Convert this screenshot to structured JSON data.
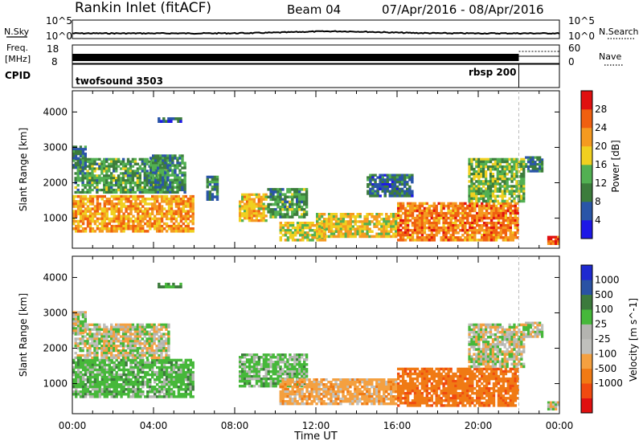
{
  "header": {
    "station": "Rankin Inlet (fitACF)",
    "beam": "Beam 04",
    "dates": "07/Apr/2016 - 08/Apr/2016"
  },
  "noise_panel": {
    "left_label": "N.Sky",
    "right_label": "N.Search",
    "left_ticks": [
      "10^5",
      "10^0"
    ],
    "right_ticks": [
      "10^5",
      "10^0"
    ]
  },
  "freq_panel": {
    "left_label_1": "Freq.",
    "left_label_2": "[MHz]",
    "right_label": "Nave",
    "left_ticks": [
      "18",
      "8"
    ],
    "right_ticks": [
      "60",
      "0"
    ]
  },
  "cpid_panel": {
    "label": "CPID",
    "programs": [
      {
        "name": "twofsound 3503",
        "start_hour": 0,
        "end_hour": 22
      },
      {
        "name": "rbsp 200",
        "start_hour": 22,
        "end_hour": 24
      }
    ]
  },
  "colors": {
    "power_scale": [
      "#1e18e6",
      "#2a55a8",
      "#3c7c3c",
      "#52b052",
      "#f0d020",
      "#f59a20",
      "#f06010",
      "#e01010"
    ],
    "velocity_scale": [
      "#e01010",
      "#f04a10",
      "#f07a14",
      "#f4a040",
      "#c0c0bc",
      "#b4b4b0",
      "#46b83a",
      "#3c7a3c",
      "#2a52a4",
      "#1e2ad0"
    ]
  },
  "chart_data": [
    {
      "type": "heatmap",
      "panel": "power",
      "xlabel": "",
      "ylabel": "Slant Range [km]",
      "x_range_hours": [
        0,
        24
      ],
      "ylim": [
        150,
        4600
      ],
      "y_ticks": [
        "1000",
        "2000",
        "3000",
        "4000"
      ],
      "colorbar_label": "Power [dB]",
      "colorbar_ticks": [
        "28",
        "24",
        "20",
        "16",
        "12",
        "8",
        "4"
      ],
      "colorbar_range": [
        0,
        32
      ],
      "regions": [
        {
          "h0": 0.0,
          "h1": 6.0,
          "r0": 600,
          "r1": 1650,
          "level": 22
        },
        {
          "h0": 0.1,
          "h1": 4.8,
          "r0": 1700,
          "r1": 2700,
          "level": 12
        },
        {
          "h0": 0.0,
          "h1": 0.7,
          "r0": 2400,
          "r1": 3050,
          "level": 9
        },
        {
          "h0": 3.8,
          "h1": 5.6,
          "r0": 1700,
          "r1": 2800,
          "level": 10
        },
        {
          "h0": 4.2,
          "h1": 5.4,
          "r0": 3700,
          "r1": 3850,
          "level": 7
        },
        {
          "h0": 6.6,
          "h1": 7.2,
          "r0": 1500,
          "r1": 2200,
          "level": 9
        },
        {
          "h0": 8.2,
          "h1": 9.6,
          "r0": 900,
          "r1": 1700,
          "level": 20
        },
        {
          "h0": 9.6,
          "h1": 11.6,
          "r0": 1000,
          "r1": 1850,
          "level": 12
        },
        {
          "h0": 10.2,
          "h1": 12.5,
          "r0": 350,
          "r1": 900,
          "level": 18
        },
        {
          "h0": 12.0,
          "h1": 16.0,
          "r0": 450,
          "r1": 1150,
          "level": 19
        },
        {
          "h0": 14.5,
          "h1": 16.8,
          "r0": 1600,
          "r1": 2250,
          "level": 8
        },
        {
          "h0": 16.0,
          "h1": 22.0,
          "r0": 350,
          "r1": 1450,
          "level": 24
        },
        {
          "h0": 19.5,
          "h1": 22.3,
          "r0": 1450,
          "r1": 2700,
          "level": 14
        },
        {
          "h0": 22.3,
          "h1": 23.2,
          "r0": 2300,
          "r1": 2750,
          "level": 9
        },
        {
          "h0": 23.4,
          "h1": 24.0,
          "r0": 250,
          "r1": 500,
          "level": 26
        }
      ]
    },
    {
      "type": "heatmap",
      "panel": "velocity",
      "xlabel": "Time UT",
      "ylabel": "Slant Range [km]",
      "x_range_hours": [
        0,
        24
      ],
      "x_ticks": [
        "00:00",
        "04:00",
        "08:00",
        "12:00",
        "16:00",
        "20:00",
        "00:00"
      ],
      "ylim": [
        150,
        4600
      ],
      "y_ticks": [
        "1000",
        "2000",
        "3000",
        "4000"
      ],
      "colorbar_label": "Velocity [m s^-1]",
      "colorbar_ticks": [
        "1000",
        "500",
        "100",
        "25",
        "-25",
        "-100",
        "-500",
        "-1000"
      ],
      "regions": [
        {
          "h0": 0.0,
          "h1": 6.0,
          "r0": 600,
          "r1": 1700,
          "velocity": 150
        },
        {
          "h0": 0.1,
          "h1": 4.8,
          "r0": 1700,
          "r1": 2700,
          "velocity": 0
        },
        {
          "h0": 0.0,
          "h1": 0.7,
          "r0": 2400,
          "r1": 3050,
          "velocity": 0
        },
        {
          "h0": 4.2,
          "h1": 5.4,
          "r0": 3700,
          "r1": 3850,
          "velocity": 300
        },
        {
          "h0": 8.2,
          "h1": 11.6,
          "r0": 900,
          "r1": 1850,
          "velocity": 120
        },
        {
          "h0": 10.2,
          "h1": 16.0,
          "r0": 400,
          "r1": 1150,
          "velocity": -150
        },
        {
          "h0": 16.0,
          "h1": 22.0,
          "r0": 350,
          "r1": 1450,
          "velocity": -400
        },
        {
          "h0": 19.5,
          "h1": 22.3,
          "r0": 1450,
          "r1": 2700,
          "velocity": 0
        },
        {
          "h0": 22.3,
          "h1": 23.2,
          "r0": 2300,
          "r1": 2750,
          "velocity": 0
        },
        {
          "h0": 23.4,
          "h1": 24.0,
          "r0": 250,
          "r1": 500,
          "velocity": 0
        }
      ]
    }
  ]
}
